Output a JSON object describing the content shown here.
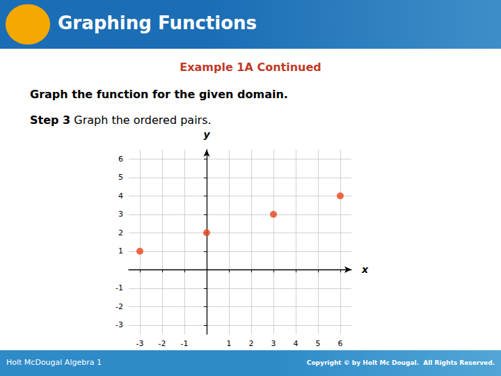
{
  "chart_data": {
    "type": "scatter",
    "title": "Graphing Functions",
    "subtitle": "Example 1A Continued",
    "annotations": [
      "Graph the function for the given domain.",
      "Step 3",
      " Graph the ordered pairs.",
      "Holt McDougal Algebra 1",
      "Copyright © by Holt Mc Dougal.  All Rights Reserved."
    ],
    "xlabel": "x",
    "ylabel": "y",
    "x": [
      -3,
      0,
      3,
      6
    ],
    "values": [
      1,
      2,
      3,
      4
    ],
    "color": "#e8431a",
    "xlim": [
      -3.5,
      6.5
    ],
    "ylim": [
      -3.5,
      6.5
    ],
    "xticks": [
      -3,
      -2,
      -1,
      1,
      2,
      3,
      4,
      5,
      6
    ],
    "yticks": [
      -3,
      -2,
      -1,
      1,
      2,
      3,
      4,
      5,
      6
    ],
    "grid": true
  }
}
